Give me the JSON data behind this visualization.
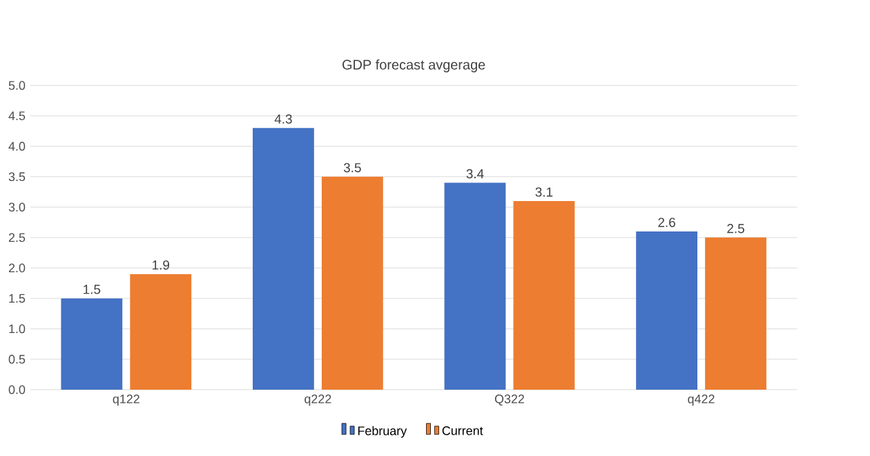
{
  "chart_data": {
    "type": "bar",
    "title": "GDP forecast avgerage",
    "categories": [
      "q122",
      "q222",
      "Q322",
      "q422"
    ],
    "series": [
      {
        "name": "February",
        "color": "#4472c4",
        "values": [
          1.5,
          4.3,
          3.4,
          2.6
        ]
      },
      {
        "name": "Current",
        "color": "#ed7d31",
        "values": [
          1.9,
          3.5,
          3.1,
          2.5
        ]
      }
    ],
    "ylim": [
      0,
      5
    ],
    "yticks": [
      {
        "value": 0,
        "label": "0.0"
      },
      {
        "value": 0.5,
        "label": "0.5"
      },
      {
        "value": 1,
        "label": "1.0"
      },
      {
        "value": 1.5,
        "label": "1.5"
      },
      {
        "value": 2,
        "label": "2.0"
      },
      {
        "value": 2.5,
        "label": "2.5"
      },
      {
        "value": 3,
        "label": "3.0"
      },
      {
        "value": 3.5,
        "label": "3.5"
      },
      {
        "value": 4,
        "label": "4.0"
      },
      {
        "value": 4.5,
        "label": "4.5"
      },
      {
        "value": 5,
        "label": "5.0"
      }
    ],
    "grid": "y",
    "legend": "bottom",
    "data_labels": true
  }
}
